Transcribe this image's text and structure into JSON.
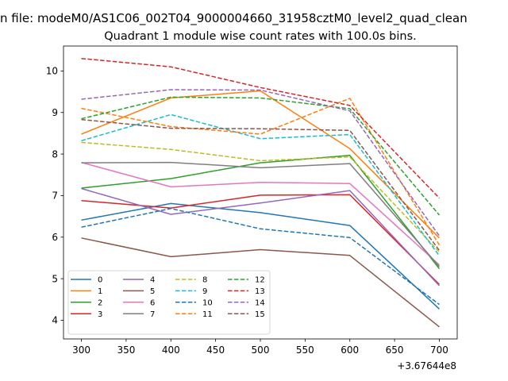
{
  "chart_data": {
    "type": "line",
    "suptitle": "n file: modeM0/AS1C06_002T04_9000004660_31958cztM0_level2_quad_clean",
    "title": "Quadrant 1 module wise count rates with 100.0s bins.",
    "xlabel": "",
    "ylabel": "",
    "x": [
      300,
      400,
      500,
      600,
      700
    ],
    "x_offset_label": "+3.67644e8",
    "xlim": [
      280,
      720
    ],
    "ylim": [
      3.55,
      10.6
    ],
    "xticks": [
      300,
      350,
      400,
      450,
      500,
      550,
      600,
      650,
      700
    ],
    "yticks": [
      4,
      5,
      6,
      7,
      8,
      9,
      10
    ],
    "grid": false,
    "legend_position": "lower-left",
    "series": [
      {
        "name": "0",
        "color": "#1f77b4",
        "dashed": false,
        "values": [
          6.41,
          6.81,
          6.59,
          6.28,
          4.27
        ]
      },
      {
        "name": "1",
        "color": "#ff7f0e",
        "dashed": false,
        "values": [
          8.48,
          9.35,
          9.52,
          8.13,
          5.98
        ]
      },
      {
        "name": "2",
        "color": "#2ca02c",
        "dashed": false,
        "values": [
          7.18,
          7.41,
          7.79,
          7.97,
          5.24
        ]
      },
      {
        "name": "3",
        "color": "#d62728",
        "dashed": false,
        "values": [
          6.88,
          6.7,
          7.01,
          7.02,
          4.86
        ]
      },
      {
        "name": "4",
        "color": "#9467bd",
        "dashed": false,
        "values": [
          7.17,
          6.55,
          6.82,
          7.12,
          4.83
        ]
      },
      {
        "name": "5",
        "color": "#8c564b",
        "dashed": false,
        "values": [
          5.98,
          5.53,
          5.7,
          5.56,
          3.84
        ]
      },
      {
        "name": "6",
        "color": "#e377c2",
        "dashed": false,
        "values": [
          7.8,
          7.21,
          7.32,
          7.29,
          5.33
        ]
      },
      {
        "name": "7",
        "color": "#7f7f7f",
        "dashed": false,
        "values": [
          7.79,
          7.8,
          7.67,
          7.77,
          5.29
        ]
      },
      {
        "name": "8",
        "color": "#bcbd22",
        "dashed": true,
        "values": [
          8.28,
          8.11,
          7.84,
          7.93,
          5.64
        ]
      },
      {
        "name": "9",
        "color": "#17becf",
        "dashed": true,
        "values": [
          8.32,
          8.95,
          8.37,
          8.47,
          5.55
        ]
      },
      {
        "name": "10",
        "color": "#1f77b4",
        "dashed": true,
        "values": [
          6.24,
          6.69,
          6.2,
          5.99,
          4.38
        ]
      },
      {
        "name": "11",
        "color": "#ff7f0e",
        "dashed": true,
        "values": [
          9.1,
          8.66,
          8.48,
          9.34,
          5.81
        ]
      },
      {
        "name": "12",
        "color": "#2ca02c",
        "dashed": true,
        "values": [
          8.85,
          9.37,
          9.35,
          9.09,
          6.53
        ]
      },
      {
        "name": "13",
        "color": "#d62728",
        "dashed": true,
        "values": [
          10.3,
          10.1,
          9.6,
          9.17,
          6.94
        ]
      },
      {
        "name": "14",
        "color": "#9467bd",
        "dashed": true,
        "values": [
          9.32,
          9.55,
          9.54,
          9.04,
          6.03
        ]
      },
      {
        "name": "15",
        "color": "#8c564b",
        "dashed": true,
        "values": [
          8.83,
          8.62,
          8.61,
          8.57,
          5.68
        ]
      }
    ]
  }
}
